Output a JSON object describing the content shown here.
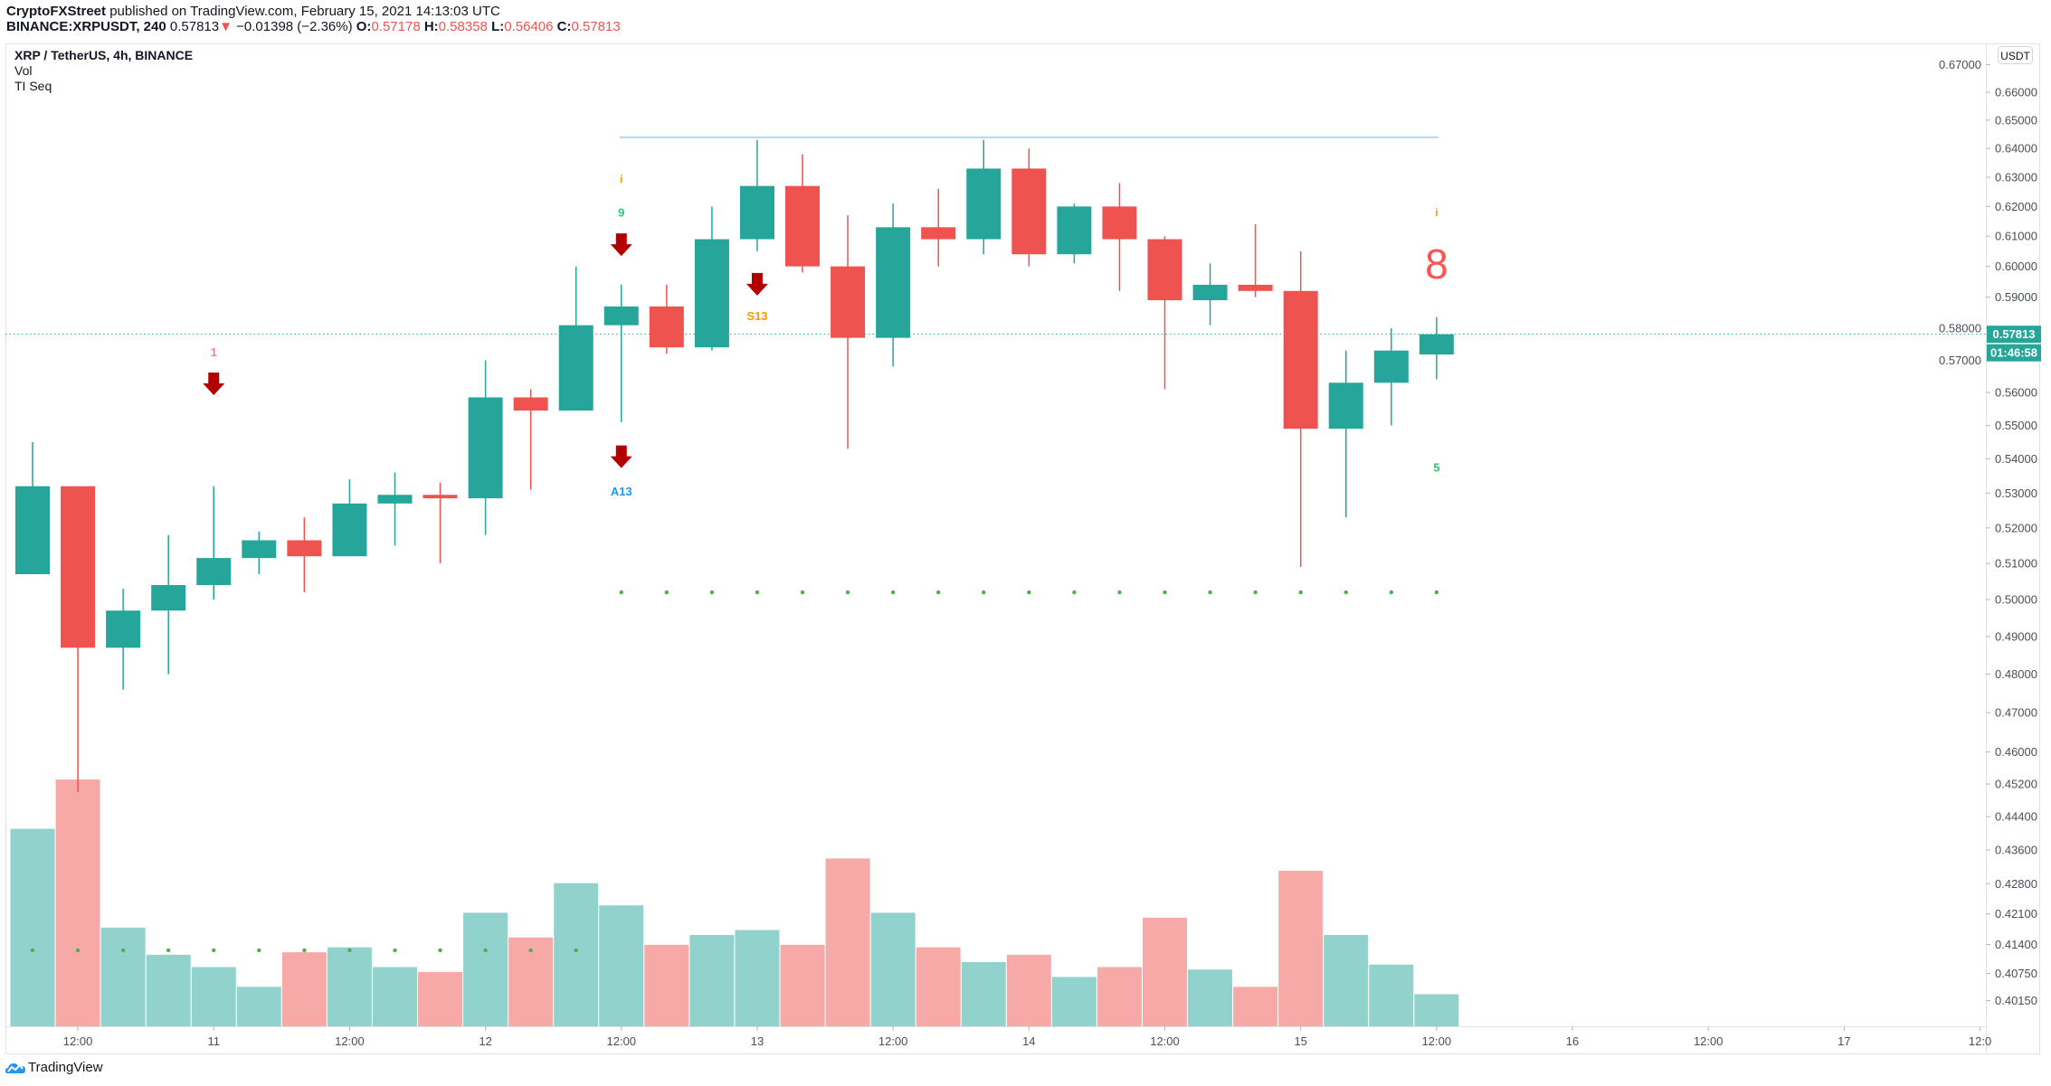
{
  "header": {
    "author": "CryptoFXStreet",
    "published": "published on TradingView.com, February 15, 2021 14:13:03 UTC",
    "symbol": "BINANCE:XRPUSDT, 240",
    "last": "0.57813",
    "change": "−0.01398 (−2.36%)",
    "o_label": "O:",
    "o": "0.57178",
    "h_label": "H:",
    "h": "0.58358",
    "l_label": "L:",
    "l": "0.56406",
    "c_label": "C:",
    "c": "0.57813"
  },
  "legend": {
    "title": "XRP / TetherUS, 4h, BINANCE",
    "vol": "Vol",
    "indicator": "TI Seq"
  },
  "footer": {
    "brand": "TradingView"
  },
  "colors": {
    "up": "#26a69a",
    "down": "#ef5350",
    "vol_up": "#92d2cc",
    "vol_down": "#f7a9a7",
    "arrow": "#b20000",
    "resistance": "#b3d9f2",
    "dots": "#4caf50",
    "seq_green": "#33c27a",
    "seq_orange": "#ff9800",
    "seq_blue": "#2196f3",
    "seq_red": "#ff5252"
  },
  "chart_data": {
    "type": "candlestick",
    "title": "XRP / TetherUS, 4h, BINANCE",
    "y_scale": "log",
    "y_unit": "USDT",
    "ylim": [
      0.3985,
      0.672
    ],
    "grid": false,
    "y_ticks": [
      "0.67000",
      "0.66000",
      "0.65000",
      "0.64000",
      "0.63000",
      "0.62000",
      "0.61000",
      "0.60000",
      "0.59000",
      "0.58000",
      "0.57000",
      "0.56000",
      "0.55000",
      "0.54000",
      "0.53000",
      "0.52000",
      "0.51000",
      "0.50000",
      "0.49000",
      "0.48000",
      "0.47000",
      "0.46000",
      "0.45200",
      "0.44400",
      "0.43600",
      "0.42800",
      "0.42100",
      "0.41400",
      "0.40750",
      "0.40150"
    ],
    "x_ticks": [
      "12:00",
      "11",
      "12:00",
      "12",
      "12:00",
      "13",
      "12:00",
      "14",
      "12:00",
      "15",
      "12:00",
      "16",
      "12:00",
      "17",
      "12:0"
    ],
    "candles_ohlc": [
      [
        0.507,
        0.545,
        0.507,
        0.532
      ],
      [
        0.532,
        0.532,
        0.45,
        0.487
      ],
      [
        0.487,
        0.503,
        0.476,
        0.497
      ],
      [
        0.497,
        0.518,
        0.48,
        0.504
      ],
      [
        0.504,
        0.532,
        0.5,
        0.5115
      ],
      [
        0.5115,
        0.519,
        0.507,
        0.5165
      ],
      [
        0.5165,
        0.523,
        0.502,
        0.512
      ],
      [
        0.512,
        0.534,
        0.515,
        0.527
      ],
      [
        0.527,
        0.536,
        0.515,
        0.5295
      ],
      [
        0.5295,
        0.533,
        0.51,
        0.5285
      ],
      [
        0.5285,
        0.57,
        0.518,
        0.5585
      ],
      [
        0.5585,
        0.561,
        0.531,
        0.5545
      ],
      [
        0.5545,
        0.6,
        0.555,
        0.581
      ],
      [
        0.581,
        0.594,
        0.551,
        0.587
      ],
      [
        0.587,
        0.594,
        0.572,
        0.574
      ],
      [
        0.574,
        0.62,
        0.573,
        0.609
      ],
      [
        0.609,
        0.643,
        0.605,
        0.627
      ],
      [
        0.627,
        0.638,
        0.598,
        0.6
      ],
      [
        0.6,
        0.617,
        0.543,
        0.577
      ],
      [
        0.577,
        0.621,
        0.568,
        0.613
      ],
      [
        0.613,
        0.626,
        0.6,
        0.609
      ],
      [
        0.609,
        0.643,
        0.604,
        0.633
      ],
      [
        0.633,
        0.64,
        0.6,
        0.604
      ],
      [
        0.604,
        0.621,
        0.601,
        0.62
      ],
      [
        0.62,
        0.628,
        0.592,
        0.609
      ],
      [
        0.609,
        0.61,
        0.561,
        0.589
      ],
      [
        0.589,
        0.601,
        0.581,
        0.594
      ],
      [
        0.594,
        0.614,
        0.59,
        0.592
      ],
      [
        0.592,
        0.605,
        0.509,
        0.549
      ],
      [
        0.549,
        0.573,
        0.523,
        0.563
      ],
      [
        0.563,
        0.58,
        0.55,
        0.573
      ],
      [
        0.57178,
        0.58358,
        0.56406,
        0.57813
      ]
    ],
    "volume_relative": [
      0.8,
      1.0,
      0.4,
      0.29,
      0.24,
      0.16,
      0.3,
      0.32,
      0.24,
      0.22,
      0.46,
      0.36,
      0.58,
      0.49,
      0.33,
      0.37,
      0.39,
      0.33,
      0.68,
      0.46,
      0.32,
      0.26,
      0.29,
      0.2,
      0.24,
      0.44,
      0.23,
      0.16,
      0.63,
      0.37,
      0.25,
      0.13
    ],
    "current_price": {
      "value": 0.57813,
      "label": "0.57813",
      "countdown": "01:46:58"
    },
    "resistance_line": {
      "price": 0.6439,
      "from_candle": 13,
      "to_candle": 31
    },
    "support_dots": [
      {
        "price": 0.502,
        "from_candle": 13,
        "to_candle": 31
      },
      {
        "price": 0.4127,
        "from_candle": 0,
        "to_candle": 12
      }
    ],
    "annotations": [
      {
        "candle": 4,
        "text": "1",
        "price": 0.5725,
        "color": "#f7818a",
        "size": 13
      },
      {
        "candle": 13,
        "text": "i",
        "price": 0.6295,
        "color": "#ff9800",
        "size": 12
      },
      {
        "candle": 13,
        "text": "9",
        "price": 0.618,
        "color": "#33c27a",
        "size": 13
      },
      {
        "candle": 13,
        "text": "A13",
        "price": 0.5305,
        "color": "#2196f3",
        "size": 13
      },
      {
        "candle": 16,
        "text": "S13",
        "price": 0.584,
        "color": "#ff9800",
        "size": 13
      },
      {
        "candle": 31,
        "text": "i",
        "price": 0.618,
        "color": "#ff9800",
        "size": 12
      },
      {
        "candle": 31,
        "text": "8",
        "price": 0.601,
        "color": "#ff5252",
        "size": 46
      },
      {
        "candle": 31,
        "text": "5",
        "price": 0.5375,
        "color": "#33c27a",
        "size": 13
      }
    ],
    "sell_arrows": [
      {
        "candle": 4,
        "price": 0.5625
      },
      {
        "candle": 13,
        "price": 0.607
      },
      {
        "candle": 13,
        "price": 0.5405
      },
      {
        "candle": 16,
        "price": 0.594
      }
    ]
  }
}
